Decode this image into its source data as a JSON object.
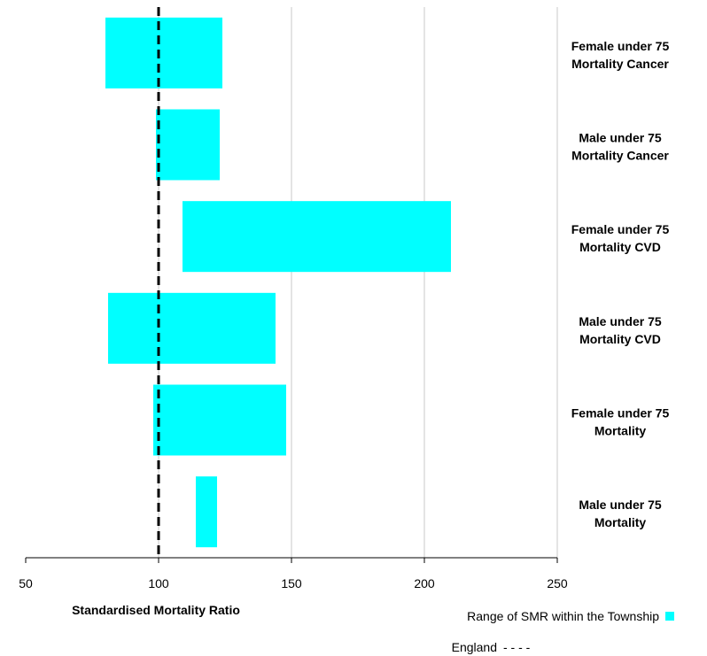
{
  "chart_data": {
    "type": "bar",
    "orientation": "horizontal-floating-range",
    "categories": [
      [
        "Female under 75",
        "Mortality Cancer"
      ],
      [
        "Male under 75",
        "Mortality Cancer"
      ],
      [
        "Female under 75",
        "Mortality CVD"
      ],
      [
        "Male under 75",
        "Mortality CVD"
      ],
      [
        "Female under 75",
        "Mortality"
      ],
      [
        "Male under 75",
        "Mortality"
      ]
    ],
    "series": [
      {
        "name": "Range of SMR within the Township",
        "color": "#00ffff",
        "ranges": [
          [
            80,
            124
          ],
          [
            99,
            123
          ],
          [
            109,
            210
          ],
          [
            81,
            144
          ],
          [
            98,
            148
          ],
          [
            114,
            122
          ]
        ]
      }
    ],
    "reference_line": {
      "name": "England",
      "value": 100,
      "style": "dashed",
      "legend_marker": "- - - -"
    },
    "xlabel": "Standardised Mortality Ratio",
    "xlim": [
      50,
      250
    ],
    "xticks": [
      50,
      100,
      150,
      200,
      250
    ],
    "grid": "vertical",
    "legend_position": "bottom-right"
  }
}
